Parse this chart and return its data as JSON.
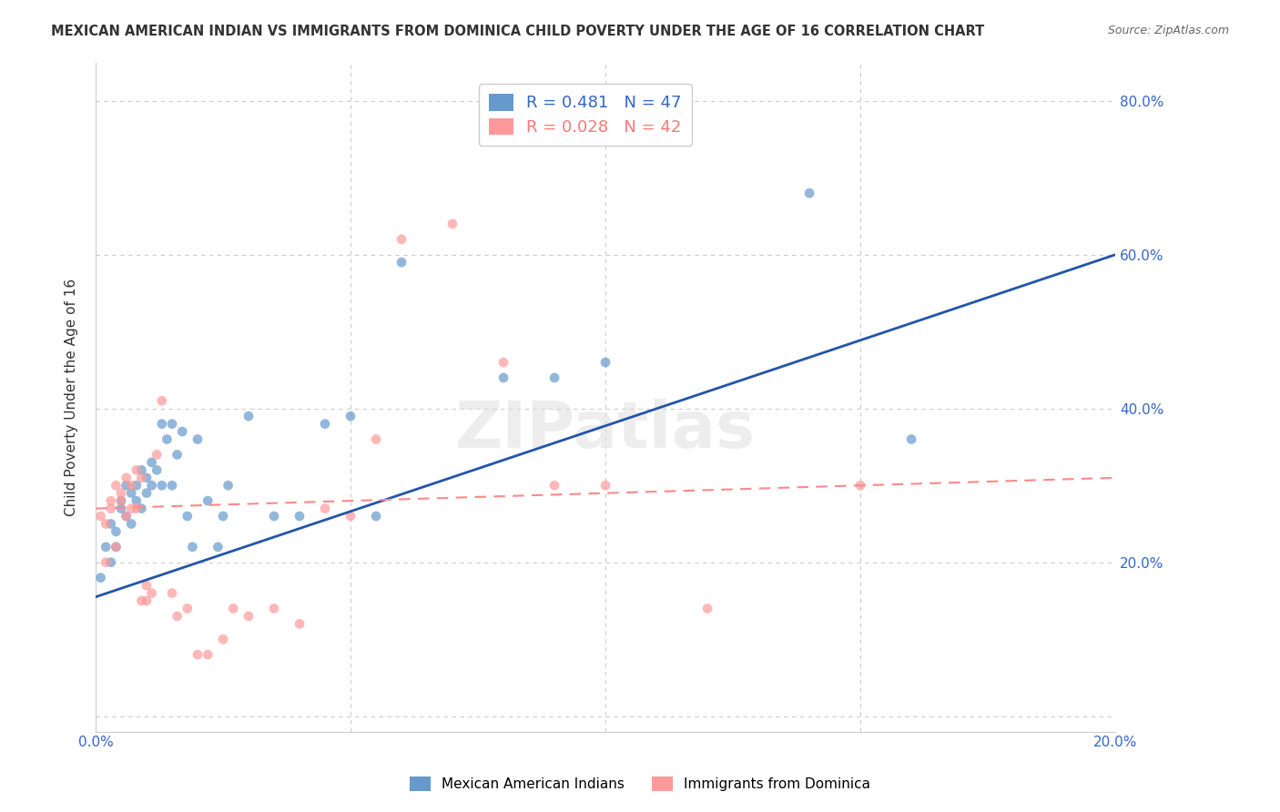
{
  "title": "MEXICAN AMERICAN INDIAN VS IMMIGRANTS FROM DOMINICA CHILD POVERTY UNDER THE AGE OF 16 CORRELATION CHART",
  "source": "Source: ZipAtlas.com",
  "ylabel": "Child Poverty Under the Age of 16",
  "xlim": [
    0.0,
    0.2
  ],
  "ylim": [
    -0.02,
    0.85
  ],
  "right_yticks": [
    0.2,
    0.4,
    0.6,
    0.8
  ],
  "right_yticklabels": [
    "20.0%",
    "40.0%",
    "60.0%",
    "80.0%"
  ],
  "blue_R": 0.481,
  "blue_N": 47,
  "pink_R": 0.028,
  "pink_N": 42,
  "blue_color": "#6699CC",
  "pink_color": "#FF9999",
  "blue_line_color": "#2255AA",
  "pink_line_color": "#FF8888",
  "legend_label_blue": "Mexican American Indians",
  "legend_label_pink": "Immigrants from Dominica",
  "watermark": "ZIPatlas",
  "blue_scatter_x": [
    0.001,
    0.002,
    0.003,
    0.003,
    0.004,
    0.004,
    0.005,
    0.005,
    0.006,
    0.006,
    0.007,
    0.007,
    0.008,
    0.008,
    0.009,
    0.009,
    0.01,
    0.01,
    0.011,
    0.011,
    0.012,
    0.013,
    0.013,
    0.014,
    0.015,
    0.015,
    0.016,
    0.017,
    0.018,
    0.019,
    0.02,
    0.022,
    0.024,
    0.025,
    0.026,
    0.03,
    0.035,
    0.04,
    0.045,
    0.05,
    0.055,
    0.06,
    0.08,
    0.09,
    0.1,
    0.14,
    0.16
  ],
  "blue_scatter_y": [
    0.18,
    0.22,
    0.2,
    0.25,
    0.24,
    0.22,
    0.27,
    0.28,
    0.26,
    0.3,
    0.29,
    0.25,
    0.28,
    0.3,
    0.32,
    0.27,
    0.31,
    0.29,
    0.3,
    0.33,
    0.32,
    0.3,
    0.38,
    0.36,
    0.38,
    0.3,
    0.34,
    0.37,
    0.26,
    0.22,
    0.36,
    0.28,
    0.22,
    0.26,
    0.3,
    0.39,
    0.26,
    0.26,
    0.38,
    0.39,
    0.26,
    0.59,
    0.44,
    0.44,
    0.46,
    0.68,
    0.36
  ],
  "pink_scatter_x": [
    0.001,
    0.002,
    0.002,
    0.003,
    0.003,
    0.004,
    0.004,
    0.005,
    0.005,
    0.006,
    0.006,
    0.007,
    0.007,
    0.008,
    0.008,
    0.009,
    0.009,
    0.01,
    0.01,
    0.011,
    0.012,
    0.013,
    0.015,
    0.016,
    0.018,
    0.02,
    0.022,
    0.025,
    0.027,
    0.03,
    0.035,
    0.04,
    0.045,
    0.05,
    0.055,
    0.06,
    0.07,
    0.08,
    0.09,
    0.1,
    0.12,
    0.15
  ],
  "pink_scatter_y": [
    0.26,
    0.2,
    0.25,
    0.27,
    0.28,
    0.22,
    0.3,
    0.28,
    0.29,
    0.26,
    0.31,
    0.3,
    0.27,
    0.32,
    0.27,
    0.31,
    0.15,
    0.15,
    0.17,
    0.16,
    0.34,
    0.41,
    0.16,
    0.13,
    0.14,
    0.08,
    0.08,
    0.1,
    0.14,
    0.13,
    0.14,
    0.12,
    0.27,
    0.26,
    0.36,
    0.62,
    0.64,
    0.46,
    0.3,
    0.3,
    0.14,
    0.3
  ],
  "blue_line_x": [
    0.0,
    0.2
  ],
  "blue_line_y": [
    0.155,
    0.6
  ],
  "pink_line_x": [
    0.0,
    0.2
  ],
  "pink_line_y": [
    0.27,
    0.31
  ]
}
